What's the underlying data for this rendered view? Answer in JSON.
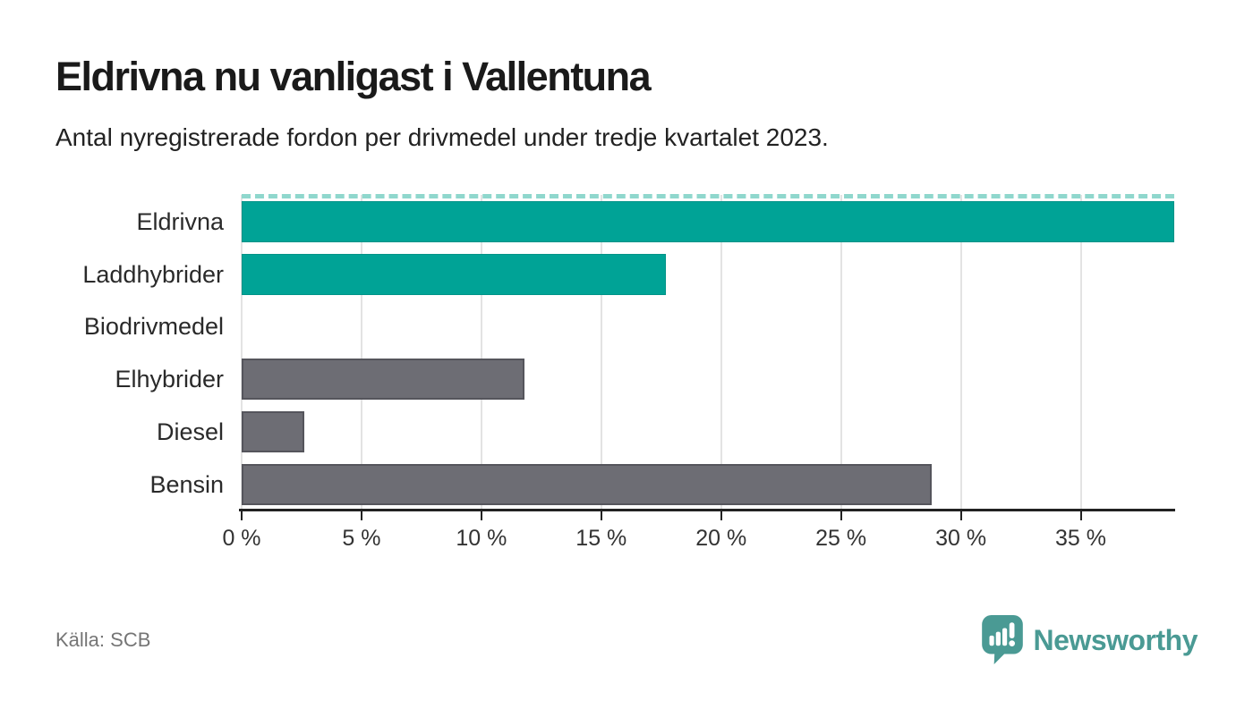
{
  "header": {
    "title": "Eldrivna nu vanligast i Vallentuna",
    "subtitle": "Antal nyregistrerade fordon per drivmedel under tredje kvartalet 2023."
  },
  "chart_data": {
    "type": "bar",
    "orientation": "horizontal",
    "title": "Eldrivna nu vanligast i Vallentuna",
    "subtitle": "Antal nyregistrerade fordon per drivmedel under tredje kvartalet 2023.",
    "categories": [
      "Eldrivna",
      "Laddhybrider",
      "Biodrivmedel",
      "Elhybrider",
      "Diesel",
      "Bensin"
    ],
    "values": [
      39.1,
      17.7,
      0,
      11.8,
      2.6,
      28.8
    ],
    "unit": "%",
    "bar_colors": [
      "teal",
      "teal",
      "none",
      "gray",
      "gray",
      "gray"
    ],
    "clipped": [
      true,
      false,
      false,
      false,
      false,
      false
    ],
    "xlim": [
      0,
      38.9
    ],
    "tick_values": [
      0,
      5,
      10,
      15,
      20,
      25,
      30,
      35
    ],
    "tick_labels": [
      "0 %",
      "5 %",
      "10 %",
      "15 %",
      "20 %",
      "25 %",
      "30 %",
      "35 %"
    ],
    "grid": true,
    "legend": "none",
    "colors": {
      "highlight": "#00a396",
      "default": "#6d6d74",
      "clip_dash": "#8fd7cd",
      "gridline": "#e3e3e3",
      "axis": "#222222"
    }
  },
  "footer": {
    "source": "Källa: SCB",
    "brand": "Newsworthy",
    "brand_color": "#4a9a94",
    "icon": "speech-bubble-bar-chart-icon"
  }
}
